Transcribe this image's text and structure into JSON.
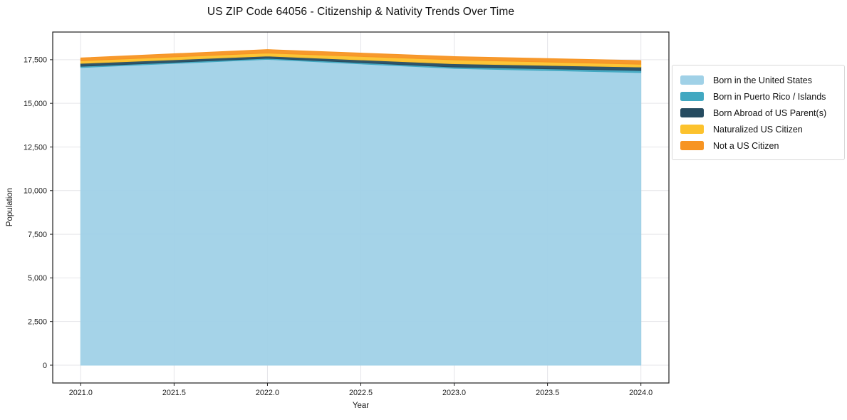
{
  "title": "US ZIP Code 64056 - Citizenship & Nativity Trends Over Time",
  "axes": {
    "x_label": "Year",
    "y_label": "Population"
  },
  "chart_data": {
    "type": "area",
    "stacked": true,
    "title": "US ZIP Code 64056 - Citizenship & Nativity Trends Over Time",
    "xlabel": "Year",
    "ylabel": "Population",
    "x": [
      2021,
      2022,
      2023,
      2024
    ],
    "series": [
      {
        "name": "Born in the United States",
        "color": "#a0d1e7",
        "values": [
          17050,
          17520,
          17000,
          16760
        ]
      },
      {
        "name": "Born in Puerto Rico / Islands",
        "color": "#41a8c1",
        "values": [
          70,
          60,
          80,
          120
        ]
      },
      {
        "name": "Born Abroad of US Parent(s)",
        "color": "#254b60",
        "values": [
          170,
          130,
          190,
          200
        ]
      },
      {
        "name": "Naturalized US Citizen",
        "color": "#fcc22d",
        "values": [
          150,
          170,
          220,
          160
        ]
      },
      {
        "name": "Not a US Citizen",
        "color": "#f79422",
        "values": [
          160,
          200,
          190,
          210
        ]
      }
    ],
    "totals": [
      17600,
      18080,
      17680,
      17450
    ],
    "xticks": [
      2021.0,
      2021.5,
      2022.0,
      2022.5,
      2023.0,
      2023.5,
      2024.0
    ],
    "xtick_labels": [
      "2021.0",
      "2021.5",
      "2022.0",
      "2022.5",
      "2023.0",
      "2023.5",
      "2024.0"
    ],
    "yticks": [
      0,
      2500,
      5000,
      7500,
      10000,
      12500,
      15000,
      17500
    ],
    "ytick_labels": [
      "0",
      "2,500",
      "5,000",
      "7,500",
      "10,000",
      "12,500",
      "15,000",
      "17,500"
    ],
    "xlim": [
      2020.85,
      2024.15
    ],
    "ylim": [
      -1020,
      19085
    ],
    "grid": true,
    "legend_position": "right of plot, upper area"
  }
}
